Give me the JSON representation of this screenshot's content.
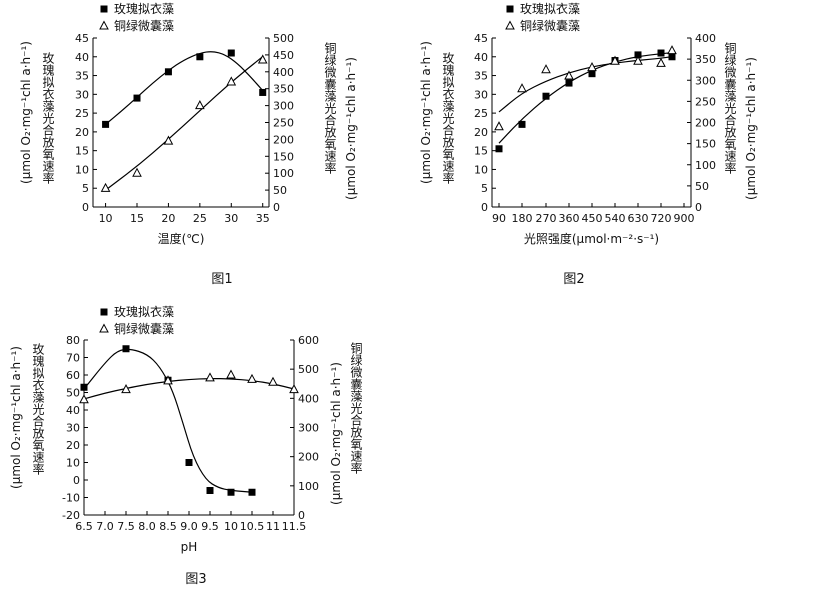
{
  "chart_data": [
    {
      "type": "scatter",
      "caption": "图1",
      "xlabel": "温度(℃)",
      "x_ticks": [
        "10",
        "15",
        "20",
        "25",
        "30",
        "35"
      ],
      "xlim": [
        8,
        36
      ],
      "ylabel_left": [
        "玫瑰拟衣藻光合放氧速率",
        "(μmol O₂·mg⁻¹chl a·h⁻¹)"
      ],
      "ylabel_right": [
        "铜绿微囊藻光合放氧速率",
        "(μmol O₂·mg⁻¹chl a·h⁻¹)"
      ],
      "ylim_left": [
        0,
        45
      ],
      "y_ticks_left": [
        "0",
        "5",
        "10",
        "15",
        "20",
        "25",
        "30",
        "35",
        "40",
        "45"
      ],
      "ylim_right": [
        0,
        500
      ],
      "y_ticks_right": [
        "0",
        "50",
        "100",
        "150",
        "200",
        "250",
        "300",
        "350",
        "400",
        "450",
        "500"
      ],
      "legend": [
        "玫瑰拟衣藻",
        "铜绿微囊藻"
      ],
      "series": [
        {
          "name": "玫瑰拟衣藻",
          "marker": "square",
          "axis": "left",
          "x": [
            10,
            15,
            20,
            25,
            30,
            35
          ],
          "y": [
            22,
            29,
            36,
            40,
            41,
            30.5
          ],
          "curve_x": [
            10,
            12.5,
            15,
            17.5,
            20,
            22.5,
            25,
            27,
            29,
            31,
            33,
            35
          ],
          "curve_y": [
            22,
            25.5,
            29.2,
            33,
            36.4,
            39.2,
            41,
            41.5,
            40.6,
            38.2,
            34.8,
            31
          ]
        },
        {
          "name": "铜绿微囊藻",
          "marker": "triangle",
          "axis": "right",
          "x": [
            10,
            15,
            20,
            25,
            30,
            35
          ],
          "y": [
            55,
            100,
            195,
            300,
            370,
            435
          ],
          "curve_x": [
            10,
            15,
            20,
            25,
            30,
            35
          ],
          "curve_y": [
            50,
            120,
            200,
            285,
            370,
            445
          ]
        }
      ]
    },
    {
      "type": "scatter",
      "caption": "图2",
      "xlabel": "光照强度(μmol·m⁻²·s⁻¹)",
      "x_ticks": [
        "90",
        "180",
        "270",
        "360",
        "450",
        "540",
        "630",
        "720",
        "900"
      ],
      "xlim": [
        80,
        900
      ],
      "ylabel_left": [
        "玫瑰拟衣藻光合放氧速率",
        "(μmol O₂·mg⁻¹chl a·h⁻¹)"
      ],
      "ylabel_right": [
        "铜绿微囊藻光合放氧速率",
        "(μmol O₂·mg⁻¹chl a·h⁻¹)"
      ],
      "ylim_left": [
        0,
        45
      ],
      "y_ticks_left": [
        "0",
        "5",
        "10",
        "15",
        "20",
        "25",
        "30",
        "35",
        "40",
        "45"
      ],
      "ylim_right": [
        0,
        400
      ],
      "y_ticks_right": [
        "0",
        "50",
        "100",
        "150",
        "200",
        "250",
        "300",
        "350",
        "400"
      ],
      "legend": [
        "玫瑰拟衣藻",
        "铜绿微囊藻"
      ],
      "series": [
        {
          "name": "玫瑰拟衣藻",
          "marker": "square",
          "axis": "left",
          "x": [
            90,
            180,
            270,
            360,
            450,
            540,
            630,
            720,
            810
          ],
          "y": [
            15.5,
            22,
            29.5,
            33,
            35.5,
            39,
            40.5,
            41,
            40
          ],
          "curve_x": [
            90,
            180,
            270,
            360,
            450,
            540,
            630,
            720,
            810
          ],
          "curve_y": [
            17,
            23.5,
            29,
            33.3,
            36.5,
            38.7,
            40.1,
            40.8,
            41.1
          ]
        },
        {
          "name": "铜绿微囊藻",
          "marker": "triangle",
          "axis": "right",
          "x": [
            90,
            180,
            270,
            360,
            450,
            540,
            630,
            720,
            810
          ],
          "y": [
            190,
            280,
            325,
            310,
            330,
            345,
            345,
            340,
            370
          ],
          "curve_x": [
            90,
            180,
            270,
            360,
            450,
            540,
            630,
            720,
            810
          ],
          "curve_y": [
            225,
            270,
            298,
            318,
            332,
            341,
            347,
            352,
            356
          ]
        }
      ]
    },
    {
      "type": "scatter",
      "caption": "图3",
      "xlabel": "pH",
      "x_ticks": [
        "6.5",
        "7.0",
        "7.5",
        "8.0",
        "8.5",
        "9.0",
        "9.5",
        "10",
        "10.5",
        "11",
        "11.5"
      ],
      "xlim": [
        6.5,
        11.5
      ],
      "ylabel_left": [
        "玫瑰拟衣藻光合放氧速率",
        "(μmol O₂·mg⁻¹chl a·h⁻¹)"
      ],
      "ylabel_right": [
        "铜绿微囊藻光合放氧速率",
        "(μmol O₂·mg⁻¹chl a·h⁻¹)"
      ],
      "ylim_left": [
        -20,
        80
      ],
      "y_ticks_left": [
        "-20",
        "-10",
        "0",
        "10",
        "20",
        "30",
        "40",
        "50",
        "60",
        "70",
        "80"
      ],
      "ylim_right": [
        0,
        600
      ],
      "y_ticks_right": [
        "0",
        "100",
        "200",
        "300",
        "400",
        "500",
        "600"
      ],
      "legend": [
        "玫瑰拟衣藻",
        "铜绿微囊藻"
      ],
      "series": [
        {
          "name": "玫瑰拟衣藻",
          "marker": "square",
          "axis": "left",
          "x": [
            6.5,
            7.5,
            8.5,
            9.0,
            9.5,
            10.0,
            10.5
          ],
          "y": [
            53,
            75,
            57,
            10,
            -6,
            -7,
            -7
          ],
          "curve_x": [
            6.5,
            7.0,
            7.3,
            7.6,
            8.0,
            8.3,
            8.6,
            8.85,
            9.1,
            9.4,
            9.7,
            10.0,
            10.3,
            10.5
          ],
          "curve_y": [
            52,
            67,
            74,
            75,
            72,
            65,
            52,
            33,
            13,
            0,
            -4.5,
            -6,
            -6.6,
            -7
          ]
        },
        {
          "name": "铜绿微囊藻",
          "marker": "triangle",
          "axis": "right",
          "x": [
            6.5,
            7.5,
            8.5,
            9.5,
            10.0,
            10.5,
            11.0,
            11.5
          ],
          "y": [
            395,
            430,
            460,
            470,
            480,
            465,
            455,
            430
          ],
          "curve_x": [
            6.5,
            7.0,
            7.5,
            8.0,
            8.5,
            9.0,
            9.5,
            10.0,
            10.5,
            11.0,
            11.5
          ],
          "curve_y": [
            398,
            418,
            434,
            448,
            458,
            465,
            468,
            467,
            461,
            450,
            432
          ]
        }
      ]
    }
  ]
}
